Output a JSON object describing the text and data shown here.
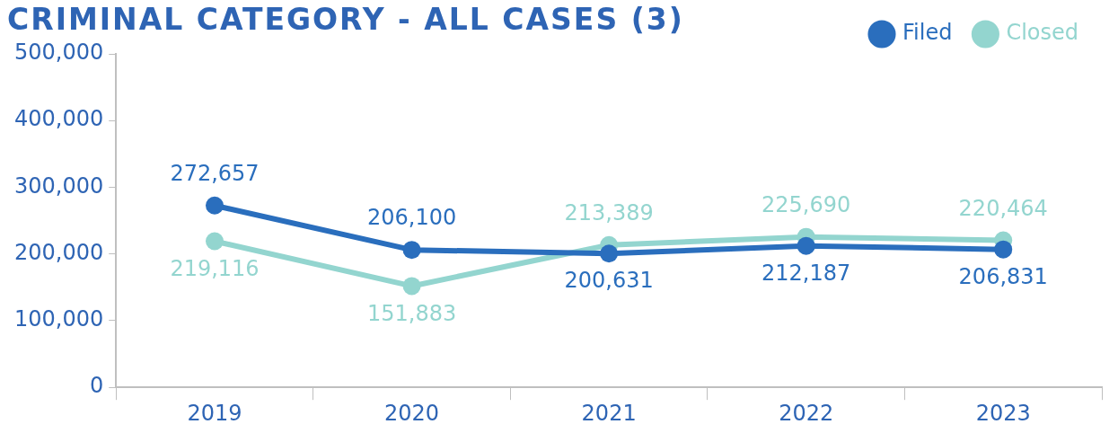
{
  "chart_data": {
    "type": "line",
    "title": "CRIMINAL CATEGORY - ALL CASES (3)",
    "categories": [
      "2019",
      "2020",
      "2021",
      "2022",
      "2023"
    ],
    "series": [
      {
        "name": "Filed",
        "color": "#2a6ebd",
        "values": [
          272657,
          206100,
          200631,
          212187,
          206831
        ],
        "value_labels": [
          "272,657",
          "206,100",
          "200,631",
          "212,187",
          "206,831"
        ]
      },
      {
        "name": "Closed",
        "color": "#93d5cf",
        "values": [
          219116,
          151883,
          213389,
          225690,
          220464
        ],
        "value_labels": [
          "219,116",
          "151,883",
          "213,389",
          "225,690",
          "220,464"
        ]
      }
    ],
    "ylim": [
      0,
      500000
    ],
    "yticks": [
      {
        "value": 0,
        "label": "0"
      },
      {
        "value": 100000,
        "label": "100,000"
      },
      {
        "value": 200000,
        "label": "200,000"
      },
      {
        "value": 300000,
        "label": "300,000"
      },
      {
        "value": 400000,
        "label": "400,000"
      },
      {
        "value": 500000,
        "label": "500,000"
      }
    ],
    "grid": false,
    "legend": "top right",
    "marker": "circle",
    "line_style": "solid"
  }
}
